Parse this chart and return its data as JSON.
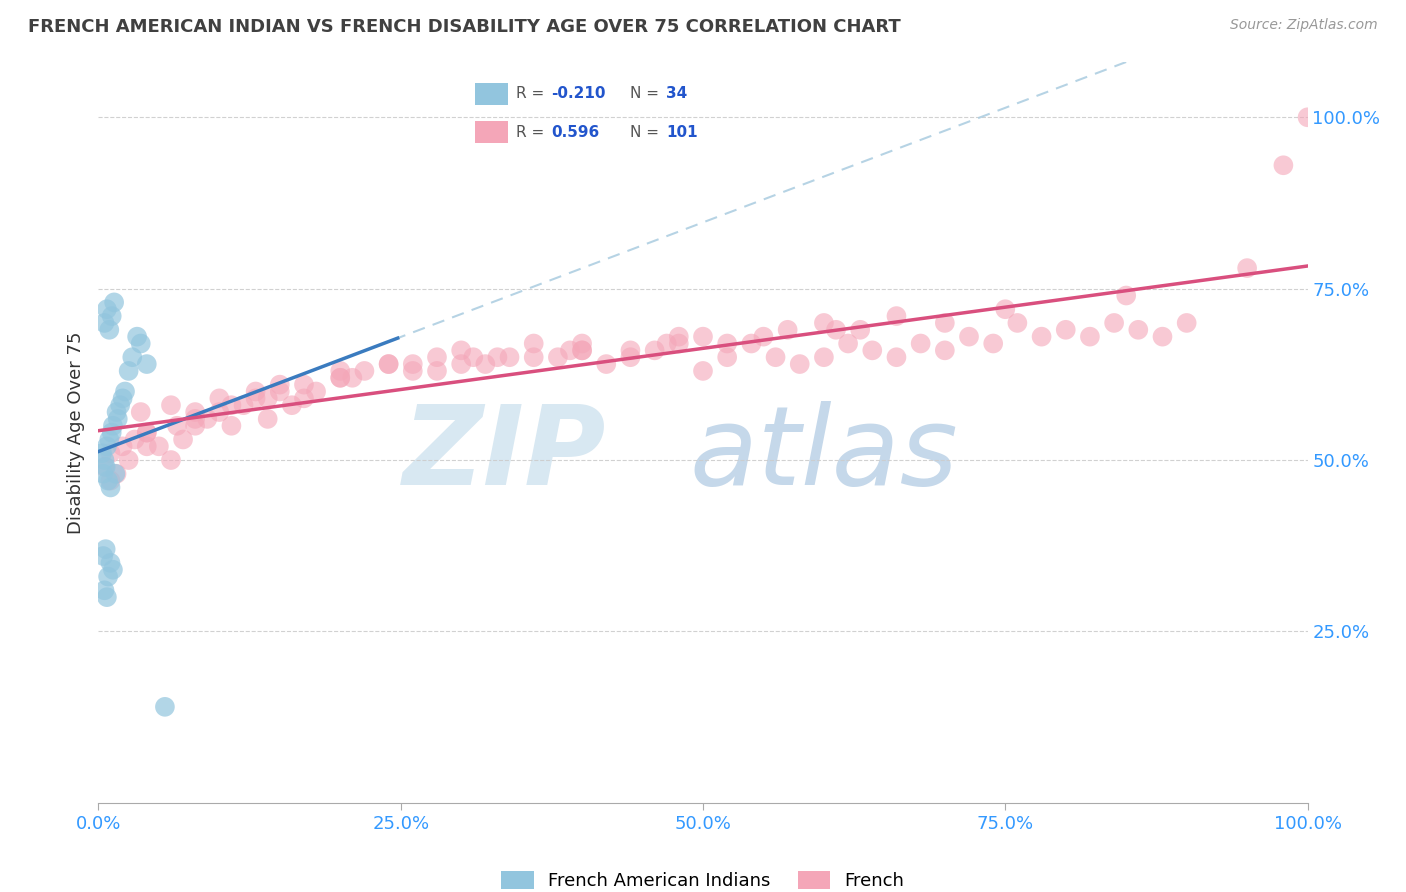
{
  "title": "FRENCH AMERICAN INDIAN VS FRENCH DISABILITY AGE OVER 75 CORRELATION CHART",
  "source": "Source: ZipAtlas.com",
  "ylabel": "Disability Age Over 75",
  "legend_label_blue": "French American Indians",
  "legend_label_pink": "French",
  "r_blue": -0.21,
  "n_blue": 34,
  "r_pink": 0.596,
  "n_pink": 101,
  "blue_color": "#92c5de",
  "pink_color": "#f4a6b8",
  "blue_line_color": "#3a7bbf",
  "pink_line_color": "#d94f7e",
  "dashed_line_color": "#aacce0",
  "blue_points_x": [
    0.3,
    0.4,
    0.5,
    0.6,
    0.7,
    0.8,
    0.9,
    1.0,
    1.1,
    1.2,
    1.4,
    1.5,
    1.6,
    1.8,
    2.0,
    2.2,
    2.5,
    2.8,
    3.2,
    3.5,
    0.5,
    0.7,
    0.9,
    1.1,
    1.3,
    0.4,
    0.6,
    0.8,
    1.0,
    1.2,
    0.5,
    0.7,
    4.0,
    5.5
  ],
  "blue_points_y": [
    51,
    48,
    50,
    49,
    52,
    47,
    53,
    46,
    54,
    55,
    48,
    57,
    56,
    58,
    59,
    60,
    63,
    65,
    68,
    67,
    70,
    72,
    69,
    71,
    73,
    36,
    37,
    33,
    35,
    34,
    31,
    30,
    64,
    14
  ],
  "pink_points_x": [
    0.5,
    1.0,
    2.0,
    3.0,
    4.0,
    5.0,
    6.0,
    7.0,
    8.0,
    9.0,
    10.0,
    11.0,
    12.0,
    13.0,
    14.0,
    15.0,
    16.0,
    17.0,
    18.0,
    20.0,
    22.0,
    24.0,
    26.0,
    28.0,
    30.0,
    32.0,
    34.0,
    36.0,
    38.0,
    40.0,
    42.0,
    44.0,
    46.0,
    48.0,
    50.0,
    52.0,
    54.0,
    56.0,
    58.0,
    60.0,
    62.0,
    64.0,
    66.0,
    68.0,
    70.0,
    72.0,
    74.0,
    76.0,
    78.0,
    80.0,
    82.0,
    84.0,
    86.0,
    88.0,
    90.0,
    1.5,
    3.5,
    6.0,
    10.0,
    15.0,
    20.0,
    26.0,
    33.0,
    40.0,
    47.0,
    55.0,
    63.0,
    70.0,
    4.0,
    8.0,
    13.0,
    20.0,
    28.0,
    36.0,
    44.0,
    52.0,
    61.0,
    2.5,
    6.5,
    11.0,
    17.0,
    24.0,
    31.0,
    40.0,
    50.0,
    60.0,
    1.0,
    4.0,
    8.0,
    14.0,
    21.0,
    30.0,
    39.0,
    48.0,
    57.0,
    66.0,
    75.0,
    85.0,
    95.0,
    100.0,
    98.0
  ],
  "pink_points_y": [
    49,
    51,
    52,
    53,
    54,
    52,
    50,
    53,
    55,
    56,
    57,
    55,
    58,
    59,
    56,
    60,
    58,
    59,
    60,
    62,
    63,
    64,
    63,
    65,
    66,
    64,
    65,
    67,
    65,
    66,
    64,
    65,
    66,
    67,
    63,
    65,
    67,
    65,
    64,
    65,
    67,
    66,
    65,
    67,
    66,
    68,
    67,
    70,
    68,
    69,
    68,
    70,
    69,
    68,
    70,
    48,
    57,
    58,
    59,
    61,
    63,
    64,
    65,
    66,
    67,
    68,
    69,
    70,
    54,
    57,
    60,
    62,
    63,
    65,
    66,
    67,
    69,
    50,
    55,
    58,
    61,
    64,
    65,
    67,
    68,
    70,
    47,
    52,
    56,
    59,
    62,
    64,
    66,
    68,
    69,
    71,
    72,
    74,
    78,
    100,
    93
  ]
}
